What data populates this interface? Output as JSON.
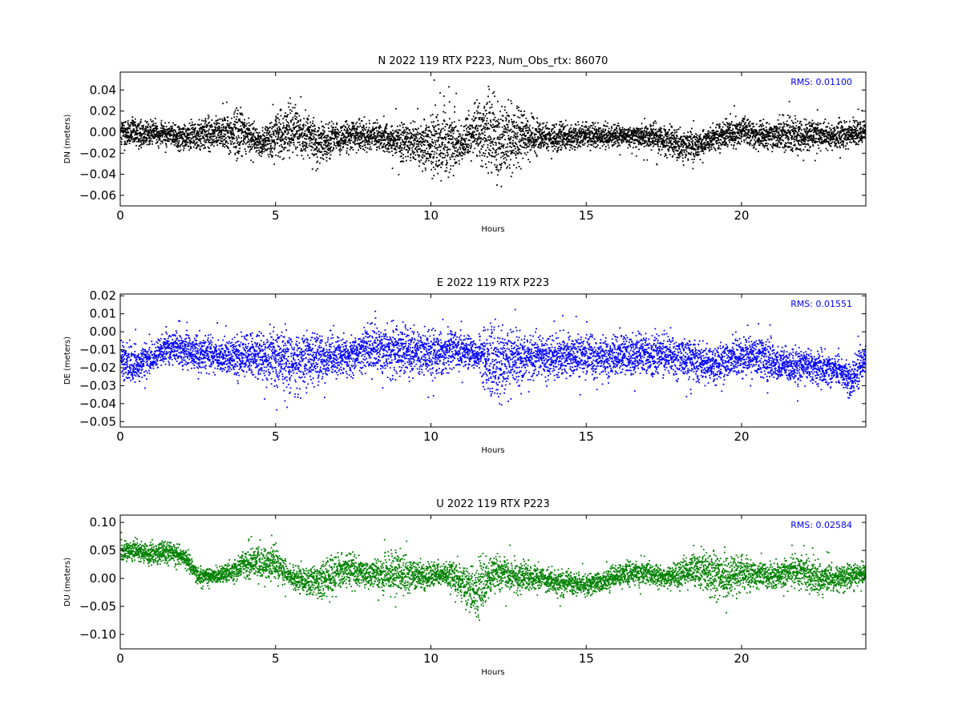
{
  "chart_data": [
    {
      "type": "scatter",
      "title": "N 2022 119 RTX  P223, Num_Obs_rtx: 86070",
      "xlabel": "Hours",
      "ylabel": "DN (meters)",
      "xlim": [
        0,
        24
      ],
      "ylim": [
        -0.07,
        0.057
      ],
      "xticks": [
        0,
        5,
        10,
        15,
        20
      ],
      "xtick_labels": [
        "0",
        "5",
        "10",
        "15",
        "20"
      ],
      "yticks": [
        -0.06,
        -0.04,
        -0.02,
        0.0,
        0.02,
        0.04
      ],
      "ytick_labels": [
        "−0.06",
        "−0.04",
        "−0.02",
        "0.00",
        "0.02",
        "0.04"
      ],
      "annotation": "RMS:  0.01100",
      "color": "#000000",
      "series": [
        {
          "x": [
            0,
            0.5,
            1,
            1.5,
            2,
            2.5,
            3,
            3.5,
            3.8,
            4,
            4.5,
            5,
            5.5,
            6,
            6.5,
            7,
            7.5,
            8,
            8.5,
            9,
            9.5,
            10,
            10.5,
            11,
            11.5,
            12,
            12.5,
            13,
            13.5,
            14,
            14.5,
            15,
            15.5,
            16,
            16.5,
            17,
            17.5,
            18,
            18.5,
            19,
            19.5,
            20,
            20.5,
            21,
            21.5,
            22,
            22.5,
            23,
            23.5,
            24
          ],
          "low": [
            -0.02,
            -0.02,
            -0.015,
            -0.015,
            -0.02,
            -0.02,
            -0.02,
            -0.025,
            -0.03,
            -0.02,
            -0.025,
            -0.03,
            -0.03,
            -0.03,
            -0.035,
            -0.025,
            -0.02,
            -0.02,
            -0.02,
            -0.03,
            -0.04,
            -0.05,
            -0.055,
            -0.03,
            -0.03,
            -0.055,
            -0.05,
            -0.03,
            -0.025,
            -0.02,
            -0.02,
            -0.015,
            -0.02,
            -0.015,
            -0.015,
            -0.02,
            -0.025,
            -0.03,
            -0.03,
            -0.02,
            -0.02,
            -0.015,
            -0.02,
            -0.02,
            -0.025,
            -0.02,
            -0.02,
            -0.02,
            -0.015,
            -0.015
          ],
          "high": [
            0.02,
            0.02,
            0.015,
            0.012,
            0.012,
            0.015,
            0.02,
            0.025,
            0.035,
            0.02,
            0.005,
            0.025,
            0.035,
            0.025,
            0.015,
            0.015,
            0.015,
            0.015,
            0.012,
            0.015,
            0.015,
            0.03,
            0.04,
            0.01,
            0.04,
            0.05,
            0.035,
            0.025,
            0.015,
            0.012,
            0.012,
            0.012,
            0.012,
            0.01,
            0.008,
            0.015,
            0.012,
            0.008,
            0.005,
            0.01,
            0.015,
            0.02,
            0.015,
            0.015,
            0.02,
            0.015,
            0.015,
            0.015,
            0.015,
            0.015
          ]
        }
      ]
    },
    {
      "type": "scatter",
      "title": "E 2022 119 RTX  P223",
      "xlabel": "Hours",
      "ylabel": "DE (meters)",
      "xlim": [
        0,
        24
      ],
      "ylim": [
        -0.053,
        0.021
      ],
      "xticks": [
        0,
        5,
        10,
        15,
        20
      ],
      "xtick_labels": [
        "0",
        "5",
        "10",
        "15",
        "20"
      ],
      "yticks": [
        -0.05,
        -0.04,
        -0.03,
        -0.02,
        -0.01,
        0.0,
        0.01,
        0.02
      ],
      "ytick_labels": [
        "−0.05",
        "−0.04",
        "−0.03",
        "−0.02",
        "−0.01",
        "0.00",
        "0.01",
        "0.02"
      ],
      "annotation": "RMS:  0.01551",
      "color": "#0000ff",
      "series": [
        {
          "x": [
            0,
            0.5,
            1,
            1.5,
            2,
            2.5,
            3,
            3.5,
            4,
            4.5,
            5,
            5.5,
            6,
            6.5,
            7,
            7.5,
            8,
            8.5,
            9,
            9.5,
            10,
            10.5,
            11,
            11.5,
            12,
            12.5,
            13,
            13.5,
            14,
            14.5,
            15,
            15.5,
            16,
            16.5,
            17,
            17.5,
            18,
            18.5,
            19,
            19.5,
            20,
            20.5,
            21,
            21.5,
            22,
            22.5,
            23,
            23.5,
            24
          ],
          "low": [
            -0.03,
            -0.032,
            -0.025,
            -0.02,
            -0.022,
            -0.025,
            -0.025,
            -0.027,
            -0.028,
            -0.028,
            -0.035,
            -0.04,
            -0.035,
            -0.03,
            -0.028,
            -0.025,
            -0.025,
            -0.028,
            -0.03,
            -0.028,
            -0.028,
            -0.025,
            -0.022,
            -0.025,
            -0.045,
            -0.035,
            -0.03,
            -0.03,
            -0.028,
            -0.028,
            -0.028,
            -0.03,
            -0.028,
            -0.028,
            -0.028,
            -0.028,
            -0.028,
            -0.03,
            -0.032,
            -0.03,
            -0.028,
            -0.028,
            -0.03,
            -0.032,
            -0.032,
            -0.032,
            -0.03,
            -0.04,
            -0.025
          ],
          "high": [
            0.0,
            -0.005,
            -0.005,
            0.002,
            0.002,
            0.002,
            0.0,
            0.0,
            0.002,
            0.002,
            0.008,
            0.005,
            0.005,
            0.002,
            0.0,
            0.0,
            0.008,
            0.008,
            0.008,
            0.005,
            0.005,
            0.005,
            0.002,
            0.0,
            0.012,
            0.005,
            0.002,
            0.002,
            0.002,
            0.002,
            0.002,
            0.002,
            0.002,
            0.002,
            0.002,
            0.002,
            0.002,
            0.0,
            -0.005,
            -0.002,
            0.0,
            0.0,
            -0.002,
            -0.005,
            -0.005,
            -0.008,
            -0.01,
            -0.015,
            0.0
          ]
        }
      ]
    },
    {
      "type": "scatter",
      "title": "U 2022 119 RTX  P223",
      "xlabel": "Hours",
      "ylabel": "DU (meters)",
      "xlim": [
        0,
        24
      ],
      "ylim": [
        -0.126,
        0.113
      ],
      "xticks": [
        0,
        5,
        10,
        15,
        20
      ],
      "xtick_labels": [
        "0",
        "5",
        "10",
        "15",
        "20"
      ],
      "yticks": [
        -0.1,
        -0.05,
        0.0,
        0.05,
        0.1
      ],
      "ytick_labels": [
        "−0.10",
        "−0.05",
        "0.00",
        "0.05",
        "0.10"
      ],
      "annotation": "RMS:  0.02584",
      "color": "#008000",
      "series": [
        {
          "x": [
            0,
            0.5,
            1,
            1.5,
            2,
            2.5,
            3,
            3.5,
            4,
            4.5,
            5,
            5.5,
            6,
            6.5,
            7,
            7.5,
            8,
            8.5,
            9,
            9.5,
            10,
            10.5,
            11,
            11.5,
            12,
            12.5,
            13,
            13.5,
            14,
            14.5,
            15,
            15.5,
            16,
            16.5,
            17,
            17.5,
            18,
            18.5,
            19,
            19.5,
            20,
            20.5,
            21,
            21.5,
            22,
            22.5,
            23,
            23.5,
            24
          ],
          "low": [
            0.025,
            0.025,
            0.02,
            0.02,
            0.02,
            -0.015,
            -0.01,
            -0.01,
            -0.01,
            -0.01,
            -0.01,
            -0.025,
            -0.04,
            -0.045,
            -0.03,
            -0.02,
            -0.02,
            -0.035,
            -0.04,
            -0.03,
            -0.02,
            -0.02,
            -0.05,
            -0.09,
            -0.03,
            -0.03,
            -0.035,
            -0.03,
            -0.035,
            -0.035,
            -0.035,
            -0.03,
            -0.02,
            -0.015,
            -0.02,
            -0.02,
            -0.025,
            -0.02,
            -0.045,
            -0.045,
            -0.03,
            -0.02,
            -0.025,
            -0.02,
            -0.025,
            -0.035,
            -0.03,
            -0.02,
            -0.01
          ],
          "high": [
            0.075,
            0.075,
            0.07,
            0.075,
            0.06,
            0.025,
            0.02,
            0.035,
            0.06,
            0.07,
            0.065,
            0.03,
            0.03,
            0.04,
            0.06,
            0.055,
            0.035,
            0.05,
            0.065,
            0.045,
            0.035,
            0.04,
            0.035,
            0.045,
            0.05,
            0.045,
            0.04,
            0.035,
            0.02,
            0.02,
            0.015,
            0.015,
            0.035,
            0.04,
            0.035,
            0.025,
            0.04,
            0.06,
            0.065,
            0.05,
            0.055,
            0.035,
            0.035,
            0.045,
            0.05,
            0.035,
            0.03,
            0.03,
            0.035
          ]
        }
      ]
    }
  ]
}
